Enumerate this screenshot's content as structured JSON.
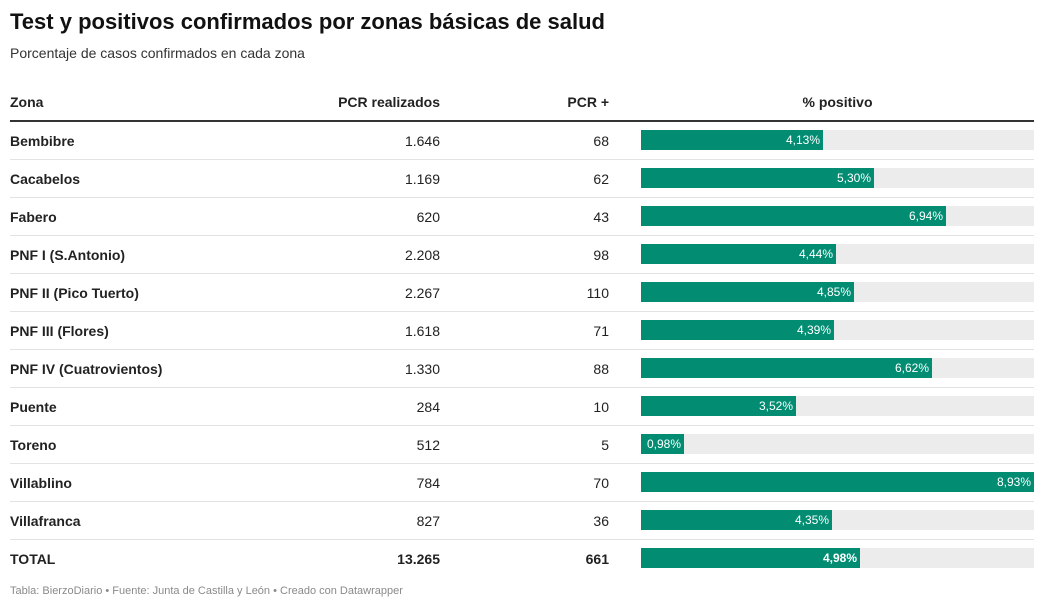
{
  "header": {
    "title": "Test y positivos confirmados por zonas básicas de salud",
    "subtitle": "Porcentaje de casos confirmados en cada zona"
  },
  "table": {
    "columns": {
      "zona": "Zona",
      "pcr": "PCR realizados",
      "positivos": "PCR +",
      "pct": "% positivo"
    }
  },
  "colors": {
    "bar": "#028d73",
    "track": "#ececec"
  },
  "chart_data": {
    "type": "table",
    "title": "Test y positivos confirmados por zonas básicas de salud",
    "subtitle": "Porcentaje de casos confirmados en cada zona",
    "bar_max": 8.93,
    "rows": [
      {
        "zona": "Bembibre",
        "pcr": "1.646",
        "positivos": "68",
        "pct": 4.13,
        "pct_label": "4,13%"
      },
      {
        "zona": "Cacabelos",
        "pcr": "1.169",
        "positivos": "62",
        "pct": 5.3,
        "pct_label": "5,30%"
      },
      {
        "zona": "Fabero",
        "pcr": "620",
        "positivos": "43",
        "pct": 6.94,
        "pct_label": "6,94%"
      },
      {
        "zona": "PNF I (S.Antonio)",
        "pcr": "2.208",
        "positivos": "98",
        "pct": 4.44,
        "pct_label": "4,44%"
      },
      {
        "zona": "PNF II (Pico Tuerto)",
        "pcr": "2.267",
        "positivos": "110",
        "pct": 4.85,
        "pct_label": "4,85%"
      },
      {
        "zona": "PNF III (Flores)",
        "pcr": "1.618",
        "positivos": "71",
        "pct": 4.39,
        "pct_label": "4,39%"
      },
      {
        "zona": "PNF IV (Cuatrovientos)",
        "pcr": "1.330",
        "positivos": "88",
        "pct": 6.62,
        "pct_label": "6,62%"
      },
      {
        "zona": "Puente",
        "pcr": "284",
        "positivos": "10",
        "pct": 3.52,
        "pct_label": "3,52%"
      },
      {
        "zona": "Toreno",
        "pcr": "512",
        "positivos": "5",
        "pct": 0.98,
        "pct_label": "0,98%"
      },
      {
        "zona": "Villablino",
        "pcr": "784",
        "positivos": "70",
        "pct": 8.93,
        "pct_label": "8,93%"
      },
      {
        "zona": "Villafranca",
        "pcr": "827",
        "positivos": "36",
        "pct": 4.35,
        "pct_label": "4,35%"
      },
      {
        "zona": "TOTAL",
        "pcr": "13.265",
        "positivos": "661",
        "pct": 4.98,
        "pct_label": "4,98%",
        "is_total": true
      }
    ]
  },
  "footer": {
    "text": "Tabla: BierzoDiario • Fuente: Junta de Castilla y León • Creado con Datawrapper"
  }
}
